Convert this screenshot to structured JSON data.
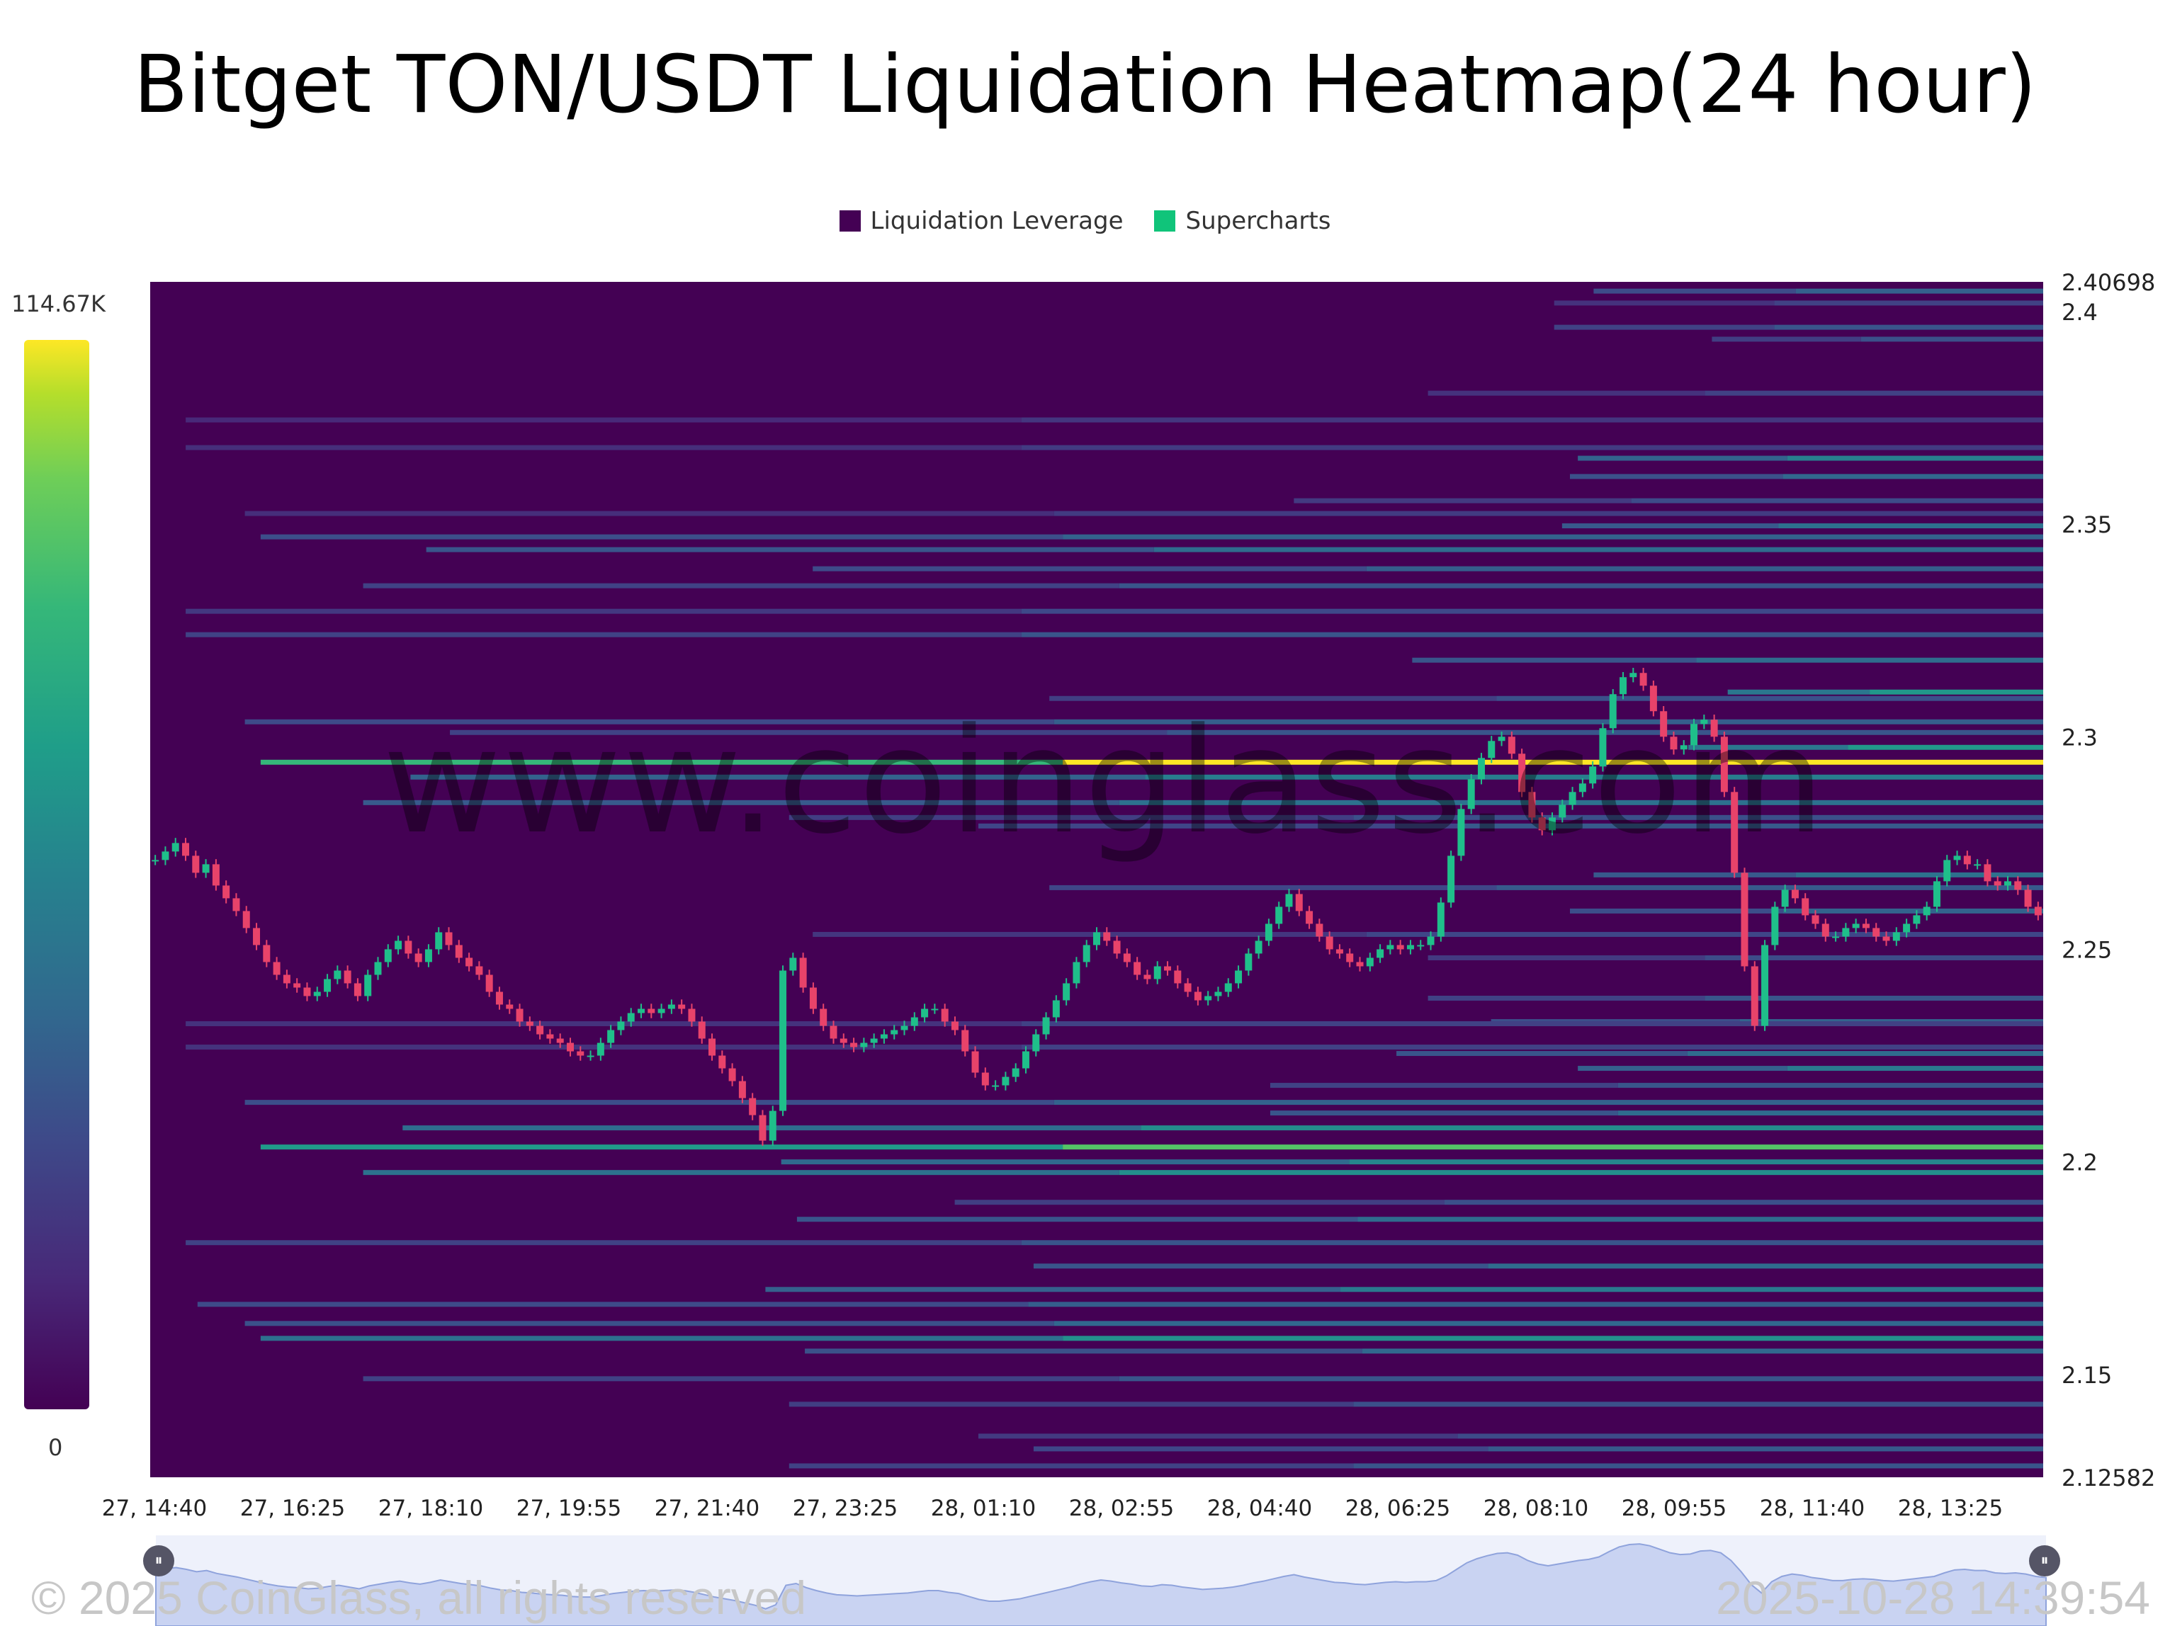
{
  "title": "Bitget TON/USDT Liquidation Heatmap(24 hour)",
  "legend": [
    {
      "label": "Liquidation Leverage",
      "color": "#440154"
    },
    {
      "label": "Supercharts",
      "color": "#10c47a"
    }
  ],
  "colorbar": {
    "max_label": "114.67K",
    "min_label": "0",
    "colormap": "viridis"
  },
  "watermark": "www.coinglass.com",
  "footer": {
    "copyright": "© 2025 CoinGlass, all rights reserved",
    "timestamp": "2025-10-28 14:39:54"
  },
  "chart_data": {
    "type": "heatmap",
    "title": "Bitget TON/USDT Liquidation Heatmap(24 hour)",
    "x_tick_labels": [
      "27, 14:40",
      "27, 16:25",
      "27, 18:10",
      "27, 19:55",
      "27, 21:40",
      "27, 23:25",
      "28, 01:10",
      "28, 02:55",
      "28, 04:40",
      "28, 06:25",
      "28, 08:10",
      "28, 09:55",
      "28, 11:40",
      "28, 13:25"
    ],
    "y_tick_labels": [
      "2.40698",
      "2.4",
      "2.35",
      "2.3",
      "2.25",
      "2.2",
      "2.15",
      "2.12582"
    ],
    "ylim": [
      2.12582,
      2.40698
    ],
    "xlim_hours": [
      0,
      24
    ],
    "colorbar_range": [
      0,
      114670
    ],
    "liquidation_levels": [
      {
        "price": 2.4048,
        "start_h": 18.3,
        "level": 0.35
      },
      {
        "price": 2.402,
        "start_h": 17.8,
        "level": 0.22
      },
      {
        "price": 2.3963,
        "start_h": 17.8,
        "level": 0.3
      },
      {
        "price": 2.3935,
        "start_h": 19.8,
        "level": 0.28
      },
      {
        "price": 2.3808,
        "start_h": 16.2,
        "level": 0.22
      },
      {
        "price": 2.3745,
        "start_h": 0.45,
        "level": 0.18
      },
      {
        "price": 2.368,
        "start_h": 0.45,
        "level": 0.2
      },
      {
        "price": 2.3655,
        "start_h": 18.1,
        "level": 0.48
      },
      {
        "price": 2.3612,
        "start_h": 18.0,
        "level": 0.38
      },
      {
        "price": 2.3555,
        "start_h": 14.5,
        "level": 0.26
      },
      {
        "price": 2.3525,
        "start_h": 1.2,
        "level": 0.2
      },
      {
        "price": 2.3496,
        "start_h": 17.9,
        "level": 0.42
      },
      {
        "price": 2.347,
        "start_h": 1.4,
        "level": 0.36
      },
      {
        "price": 2.344,
        "start_h": 3.5,
        "level": 0.4
      },
      {
        "price": 2.3395,
        "start_h": 8.4,
        "level": 0.34
      },
      {
        "price": 2.3355,
        "start_h": 2.7,
        "level": 0.3
      },
      {
        "price": 2.3295,
        "start_h": 0.45,
        "level": 0.25
      },
      {
        "price": 2.324,
        "start_h": 0.45,
        "level": 0.3
      },
      {
        "price": 2.318,
        "start_h": 16.0,
        "level": 0.4
      },
      {
        "price": 2.3105,
        "start_h": 20.0,
        "level": 0.6
      },
      {
        "price": 2.309,
        "start_h": 11.4,
        "level": 0.28
      },
      {
        "price": 2.3035,
        "start_h": 1.2,
        "level": 0.34
      },
      {
        "price": 2.301,
        "start_h": 3.8,
        "level": 0.3
      },
      {
        "price": 2.2975,
        "start_h": 19.5,
        "level": 0.6
      },
      {
        "price": 2.294,
        "start_h": 1.4,
        "level": 1.0
      },
      {
        "price": 2.2905,
        "start_h": 3.3,
        "level": 0.48
      },
      {
        "price": 2.2845,
        "start_h": 2.7,
        "level": 0.42
      },
      {
        "price": 2.281,
        "start_h": 8.1,
        "level": 0.28
      },
      {
        "price": 2.279,
        "start_h": 10.5,
        "level": 0.32
      },
      {
        "price": 2.2675,
        "start_h": 18.3,
        "level": 0.42
      },
      {
        "price": 2.2645,
        "start_h": 11.4,
        "level": 0.32
      },
      {
        "price": 2.259,
        "start_h": 18.0,
        "level": 0.36
      },
      {
        "price": 2.2535,
        "start_h": 8.4,
        "level": 0.24
      },
      {
        "price": 2.248,
        "start_h": 16.2,
        "level": 0.26
      },
      {
        "price": 2.2385,
        "start_h": 16.2,
        "level": 0.3
      },
      {
        "price": 2.233,
        "start_h": 17.0,
        "level": 0.36
      },
      {
        "price": 2.2325,
        "start_h": 0.45,
        "level": 0.22
      },
      {
        "price": 2.227,
        "start_h": 0.45,
        "level": 0.22
      },
      {
        "price": 2.2255,
        "start_h": 15.8,
        "level": 0.4
      },
      {
        "price": 2.222,
        "start_h": 18.1,
        "level": 0.46
      },
      {
        "price": 2.218,
        "start_h": 14.2,
        "level": 0.3
      },
      {
        "price": 2.214,
        "start_h": 1.2,
        "level": 0.36
      },
      {
        "price": 2.2115,
        "start_h": 14.2,
        "level": 0.4
      },
      {
        "price": 2.208,
        "start_h": 3.2,
        "level": 0.54
      },
      {
        "price": 2.2035,
        "start_h": 1.4,
        "level": 0.82
      },
      {
        "price": 2.2,
        "start_h": 8.0,
        "level": 0.52
      },
      {
        "price": 2.1975,
        "start_h": 2.7,
        "level": 0.56
      },
      {
        "price": 2.1905,
        "start_h": 10.2,
        "level": 0.28
      },
      {
        "price": 2.1865,
        "start_h": 8.2,
        "level": 0.4
      },
      {
        "price": 2.181,
        "start_h": 0.45,
        "level": 0.3
      },
      {
        "price": 2.1755,
        "start_h": 11.2,
        "level": 0.4
      },
      {
        "price": 2.17,
        "start_h": 7.8,
        "level": 0.46
      },
      {
        "price": 2.1665,
        "start_h": 0.6,
        "level": 0.34
      },
      {
        "price": 2.162,
        "start_h": 1.2,
        "level": 0.38
      },
      {
        "price": 2.1585,
        "start_h": 1.4,
        "level": 0.56
      },
      {
        "price": 2.1555,
        "start_h": 8.3,
        "level": 0.38
      },
      {
        "price": 2.149,
        "start_h": 2.7,
        "level": 0.3
      },
      {
        "price": 2.143,
        "start_h": 8.1,
        "level": 0.28
      },
      {
        "price": 2.1355,
        "start_h": 10.5,
        "level": 0.26
      },
      {
        "price": 2.1325,
        "start_h": 11.2,
        "level": 0.32
      },
      {
        "price": 2.1285,
        "start_h": 8.1,
        "level": 0.3
      }
    ],
    "price_series": {
      "name": "TON/USDT price",
      "start_h": 0.0,
      "end_h": 24.0,
      "values": [
        2.271,
        2.273,
        2.275,
        2.272,
        2.268,
        2.27,
        2.265,
        2.262,
        2.259,
        2.255,
        2.251,
        2.247,
        2.244,
        2.242,
        2.241,
        2.239,
        2.24,
        2.243,
        2.245,
        2.242,
        2.239,
        2.244,
        2.247,
        2.25,
        2.252,
        2.249,
        2.247,
        2.25,
        2.254,
        2.251,
        2.248,
        2.246,
        2.244,
        2.24,
        2.237,
        2.236,
        2.233,
        2.232,
        2.23,
        2.229,
        2.228,
        2.226,
        2.225,
        2.225,
        2.228,
        2.231,
        2.233,
        2.235,
        2.236,
        2.235,
        2.236,
        2.237,
        2.236,
        2.233,
        2.229,
        2.225,
        2.222,
        2.219,
        2.215,
        2.211,
        2.205,
        2.212,
        2.245,
        2.248,
        2.241,
        2.236,
        2.232,
        2.229,
        2.228,
        2.227,
        2.228,
        2.229,
        2.23,
        2.231,
        2.232,
        2.234,
        2.236,
        2.236,
        2.233,
        2.231,
        2.226,
        2.221,
        2.218,
        2.218,
        2.22,
        2.222,
        2.226,
        2.23,
        2.234,
        2.238,
        2.242,
        2.247,
        2.251,
        2.254,
        2.252,
        2.249,
        2.247,
        2.244,
        2.243,
        2.246,
        2.245,
        2.242,
        2.24,
        2.238,
        2.239,
        2.24,
        2.242,
        2.245,
        2.249,
        2.252,
        2.256,
        2.26,
        2.263,
        2.259,
        2.256,
        2.253,
        2.25,
        2.249,
        2.247,
        2.246,
        2.248,
        2.25,
        2.251,
        2.25,
        2.251,
        2.251,
        2.253,
        2.261,
        2.272,
        2.283,
        2.29,
        2.295,
        2.299,
        2.3,
        2.296,
        2.287,
        2.281,
        2.278,
        2.281,
        2.284,
        2.287,
        2.289,
        2.293,
        2.302,
        2.31,
        2.314,
        2.315,
        2.312,
        2.306,
        2.3,
        2.297,
        2.298,
        2.303,
        2.304,
        2.3,
        2.287,
        2.268,
        2.246,
        2.232,
        2.251,
        2.26,
        2.264,
        2.262,
        2.258,
        2.256,
        2.253,
        2.253,
        2.255,
        2.256,
        2.255,
        2.253,
        2.252,
        2.254,
        2.256,
        2.258,
        2.26,
        2.266,
        2.271,
        2.272,
        2.27,
        2.27,
        2.266,
        2.265,
        2.266,
        2.264,
        2.26,
        2.258
      ]
    }
  }
}
